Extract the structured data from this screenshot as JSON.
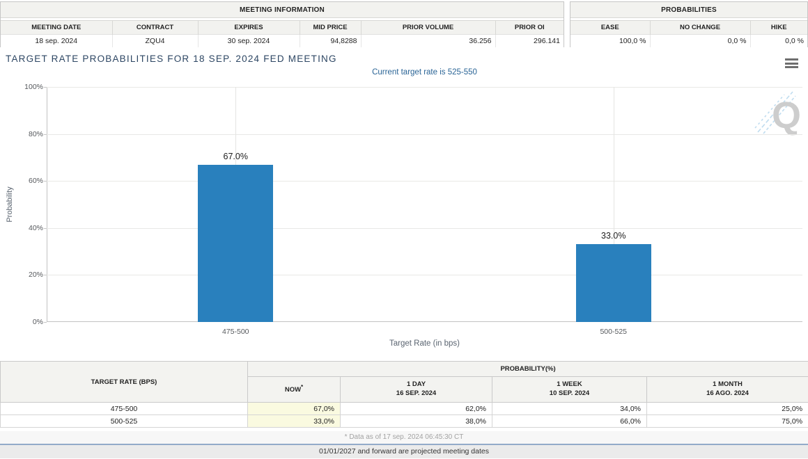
{
  "meeting_information": {
    "title": "MEETING INFORMATION",
    "columns": [
      "MEETING DATE",
      "CONTRACT",
      "EXPIRES",
      "MID PRICE",
      "PRIOR VOLUME",
      "PRIOR OI"
    ],
    "values": [
      "18 sep. 2024",
      "ZQU4",
      "30 sep. 2024",
      "94,8288",
      "36.256",
      "296.141"
    ]
  },
  "probabilities_panel": {
    "title": "PROBABILITIES",
    "columns": [
      "EASE",
      "NO CHANGE",
      "HIKE"
    ],
    "values": [
      "100,0 %",
      "0,0 %",
      "0,0 %"
    ]
  },
  "chart": {
    "title": "TARGET RATE PROBABILITIES FOR 18 SEP. 2024 FED MEETING",
    "subtitle": "Current target rate is 525-550"
  },
  "chart_data": {
    "type": "bar",
    "categories": [
      "475-500",
      "500-525"
    ],
    "values": [
      67.0,
      33.0
    ],
    "value_labels": [
      "67.0%",
      "33.0%"
    ],
    "title": "TARGET RATE PROBABILITIES FOR 18 SEP. 2024 FED MEETING",
    "subtitle": "Current target rate is 525-550",
    "xlabel": "Target Rate (in bps)",
    "ylabel": "Probability",
    "ylim": [
      0,
      100
    ],
    "yticks": [
      {
        "value": 0,
        "label": "0%"
      },
      {
        "value": 20,
        "label": "20%"
      },
      {
        "value": 40,
        "label": "40%"
      },
      {
        "value": 60,
        "label": "60%"
      },
      {
        "value": 80,
        "label": "80%"
      },
      {
        "value": 100,
        "label": "100%"
      }
    ],
    "grid": true,
    "legend": false,
    "bar_color": "#2980bd"
  },
  "history_table": {
    "corner_header": "TARGET RATE (BPS)",
    "group_header": "PROBABILITY(%)",
    "now_label": "NOW",
    "now_sup": "*",
    "cols": [
      {
        "l1": "1 DAY",
        "l2": "16 SEP. 2024"
      },
      {
        "l1": "1 WEEK",
        "l2": "10 SEP. 2024"
      },
      {
        "l1": "1 MONTH",
        "l2": "16 AGO. 2024"
      }
    ],
    "rows": [
      {
        "rate": "475-500",
        "now": "67,0%",
        "day1": "62,0%",
        "week1": "34,0%",
        "month1": "25,0%"
      },
      {
        "rate": "500-525",
        "now": "33,0%",
        "day1": "38,0%",
        "week1": "66,0%",
        "month1": "75,0%"
      }
    ]
  },
  "footnotes": {
    "data_as_of": "* Data as of 17 sep. 2024 06:45:30 CT",
    "projection_note": "01/01/2027 and forward are projected meeting dates"
  },
  "colors": {
    "bar": "#2980bd",
    "accent_border": "#9fb1c8",
    "now_highlight": "#fafae0"
  }
}
